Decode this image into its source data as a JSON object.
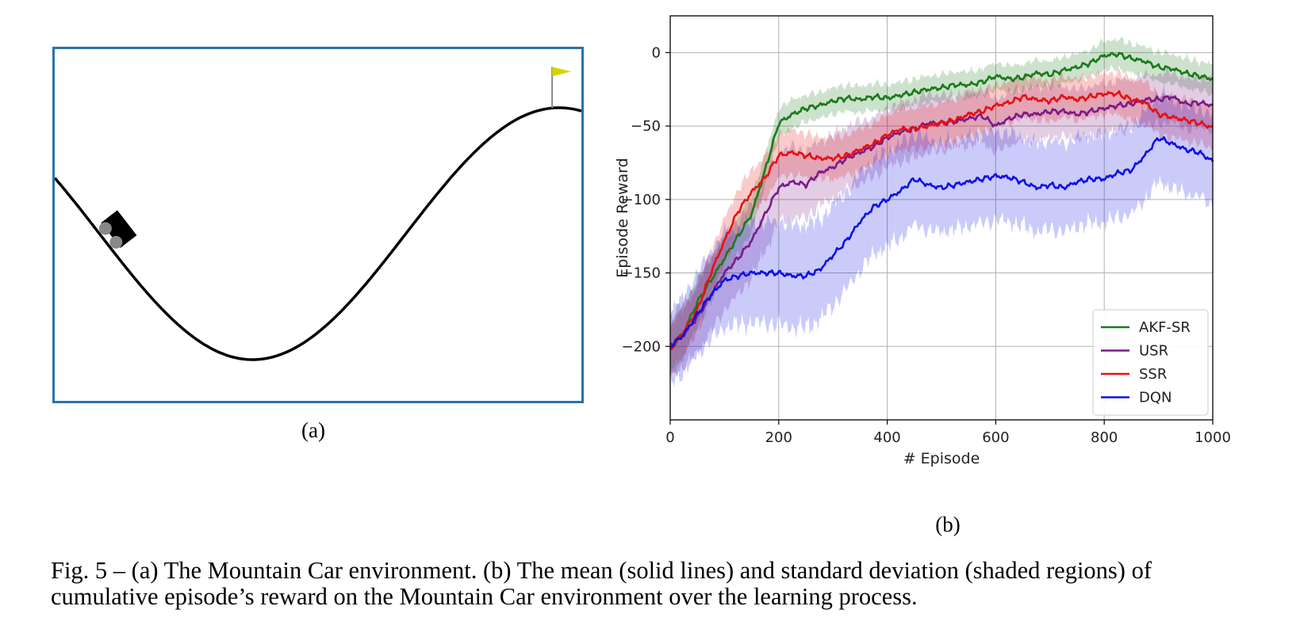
{
  "panel_a": {
    "label": "(a)",
    "scene": {
      "curve": "sin(3x)",
      "x_range": [
        -1.2,
        0.6
      ],
      "car_position": -1.03,
      "goal_position": 0.5,
      "flag_color": "#d4d400",
      "border_color": "#2a73aa"
    }
  },
  "panel_b": {
    "label": "(b)"
  },
  "caption": {
    "line1": "Fig. 5 – (a) The Mountain Car environment.  (b) The mean (solid lines) and standard deviation (shaded regions) of",
    "line2": "cumulative episode’s reward on the Mountain Car environment over the learning process."
  },
  "chart_data": {
    "type": "line",
    "xlabel": "# Episode",
    "ylabel": "Episode Reward",
    "xlim": [
      0,
      1000
    ],
    "ylim": [
      -250,
      25
    ],
    "xticks": [
      0,
      200,
      400,
      600,
      800,
      1000
    ],
    "yticks": [
      0,
      -50,
      -100,
      -150,
      -200
    ],
    "xtick_labels": [
      "0",
      "200",
      "400",
      "600",
      "800",
      "1000"
    ],
    "ytick_labels": [
      "0",
      "−50",
      "−100",
      "−150",
      "−200"
    ],
    "grid": true,
    "legend_position": "bottom-right",
    "x": [
      0,
      25,
      50,
      75,
      100,
      125,
      150,
      175,
      200,
      225,
      250,
      275,
      300,
      325,
      350,
      375,
      400,
      425,
      450,
      475,
      500,
      525,
      550,
      575,
      600,
      625,
      650,
      675,
      700,
      725,
      750,
      775,
      800,
      825,
      850,
      875,
      900,
      925,
      950,
      975,
      1000
    ],
    "series": [
      {
        "name": "AKF-SR",
        "color": "#1a7a1a",
        "values": [
          -202,
          -190,
          -170,
          -155,
          -140,
          -125,
          -110,
          -80,
          -48,
          -42,
          -38,
          -36,
          -33,
          -31,
          -32,
          -30,
          -31,
          -29,
          -27,
          -25,
          -24,
          -22,
          -22,
          -20,
          -16,
          -18,
          -17,
          -14,
          -15,
          -12,
          -10,
          -7,
          -2,
          -1,
          -4,
          -6,
          -10,
          -11,
          -14,
          -16,
          -18
        ],
        "std": [
          18,
          17,
          16,
          15,
          14,
          13,
          12,
          11,
          10,
          10,
          9,
          9,
          9,
          9,
          9,
          9,
          9,
          9,
          9,
          9,
          9,
          9,
          9,
          9,
          9,
          9,
          9,
          9,
          9,
          9,
          9,
          9,
          10,
          10,
          10,
          10,
          10,
          10,
          10,
          10,
          10
        ]
      },
      {
        "name": "USR",
        "color": "#7a1a8a",
        "values": [
          -200,
          -192,
          -180,
          -165,
          -150,
          -140,
          -128,
          -110,
          -92,
          -88,
          -90,
          -82,
          -78,
          -72,
          -68,
          -64,
          -58,
          -54,
          -52,
          -48,
          -48,
          -47,
          -45,
          -43,
          -50,
          -45,
          -42,
          -42,
          -40,
          -40,
          -42,
          -40,
          -38,
          -36,
          -35,
          -32,
          -32,
          -30,
          -35,
          -34,
          -36
        ],
        "std": [
          20,
          22,
          24,
          25,
          25,
          25,
          25,
          25,
          24,
          24,
          23,
          22,
          22,
          22,
          21,
          20,
          20,
          20,
          20,
          20,
          19,
          18,
          18,
          18,
          18,
          18,
          18,
          18,
          18,
          17,
          17,
          17,
          17,
          17,
          17,
          17,
          17,
          17,
          17,
          17,
          17
        ]
      },
      {
        "name": "SSR",
        "color": "#e81010",
        "values": [
          -202,
          -190,
          -175,
          -150,
          -128,
          -108,
          -95,
          -85,
          -70,
          -68,
          -70,
          -72,
          -72,
          -70,
          -66,
          -62,
          -56,
          -52,
          -52,
          -50,
          -48,
          -46,
          -42,
          -40,
          -36,
          -34,
          -30,
          -32,
          -33,
          -30,
          -32,
          -30,
          -28,
          -28,
          -32,
          -34,
          -42,
          -44,
          -46,
          -48,
          -51
        ],
        "std": [
          16,
          16,
          16,
          15,
          15,
          15,
          15,
          15,
          15,
          15,
          15,
          14,
          14,
          14,
          14,
          14,
          14,
          14,
          14,
          14,
          14,
          14,
          14,
          14,
          14,
          14,
          14,
          14,
          14,
          14,
          14,
          14,
          14,
          14,
          14,
          14,
          14,
          14,
          14,
          14,
          14
        ]
      },
      {
        "name": "DQN",
        "color": "#1010e8",
        "values": [
          -200,
          -192,
          -178,
          -165,
          -155,
          -152,
          -150,
          -150,
          -150,
          -152,
          -152,
          -148,
          -138,
          -128,
          -115,
          -105,
          -100,
          -94,
          -86,
          -90,
          -92,
          -90,
          -88,
          -86,
          -84,
          -85,
          -88,
          -92,
          -90,
          -92,
          -88,
          -86,
          -86,
          -82,
          -80,
          -70,
          -58,
          -62,
          -66,
          -68,
          -74
        ],
        "std": [
          25,
          26,
          28,
          30,
          32,
          33,
          34,
          34,
          35,
          35,
          35,
          34,
          34,
          33,
          33,
          32,
          32,
          32,
          31,
          31,
          30,
          30,
          30,
          30,
          30,
          30,
          30,
          30,
          30,
          30,
          30,
          30,
          30,
          30,
          30,
          30,
          30,
          30,
          30,
          30,
          30
        ]
      }
    ]
  }
}
